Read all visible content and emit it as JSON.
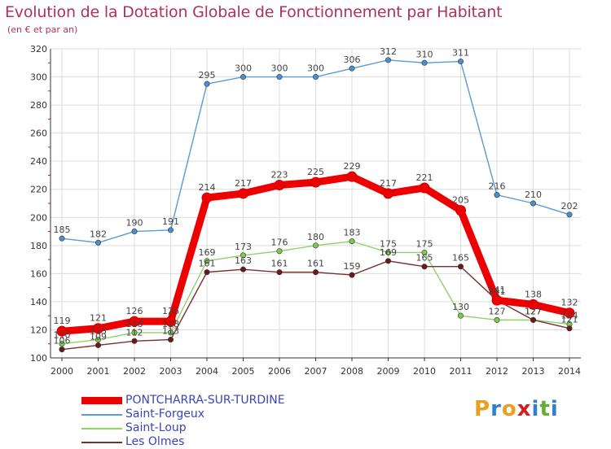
{
  "header": {
    "title": "Evolution de la Dotation Globale de Fonctionnement par Habitant",
    "subtitle": "(en € et par an)"
  },
  "logo": {
    "text": "Proxiti",
    "colors": [
      "#e8a020",
      "#3080d0",
      "#e8a020",
      "#d02020",
      "#3080d0",
      "#60b030",
      "#3080d0"
    ]
  },
  "colors": {
    "background": "#ffffff",
    "grid": "#dcdcdc",
    "axis": "#333333",
    "label": "#333333",
    "title": "#b03060"
  },
  "chart_data": {
    "type": "line",
    "title": "Evolution de la Dotation Globale de Fonctionnement par Habitant",
    "subtitle": "(en € et par an)",
    "xlabel": "",
    "ylabel": "",
    "ylim": [
      100,
      320
    ],
    "yticks": [
      100,
      120,
      140,
      160,
      180,
      200,
      220,
      240,
      260,
      280,
      300,
      320
    ],
    "categories": [
      "2000",
      "2001",
      "2002",
      "2003",
      "2004",
      "2005",
      "2006",
      "2007",
      "2008",
      "2009",
      "2010",
      "2011",
      "2012",
      "2013",
      "2014"
    ],
    "grid": true,
    "legend_position": "bottom-left",
    "series": [
      {
        "name": "Saint-Forgeux",
        "color": "#5a9bd4",
        "marker_color": "#4a90d0",
        "emphasis": false,
        "values": [
          185,
          182,
          190,
          191,
          295,
          300,
          300,
          300,
          306,
          312,
          310,
          311,
          216,
          210,
          202
        ]
      },
      {
        "name": "Saint-Loup",
        "color": "#8fd16a",
        "marker_color": "#7ccc4a",
        "emphasis": false,
        "values": [
          110,
          113,
          118,
          118,
          169,
          173,
          176,
          180,
          183,
          175,
          175,
          130,
          127,
          127,
          124
        ]
      },
      {
        "name": "Les Olmes",
        "color": "#7a2e2e",
        "marker_color": "#6a1a1a",
        "emphasis": false,
        "values": [
          106,
          109,
          112,
          113,
          161,
          163,
          161,
          161,
          159,
          169,
          165,
          165,
          141,
          127,
          121
        ]
      },
      {
        "name": "PONTCHARRA-SUR-TURDINE",
        "color": "#ee0000",
        "marker_color": "#ee0000",
        "emphasis": true,
        "values": [
          119,
          121,
          126,
          126,
          214,
          217,
          223,
          225,
          229,
          217,
          221,
          205,
          141,
          138,
          132
        ]
      }
    ],
    "data_labels": [
      {
        "series": "Saint-Forgeux",
        "labels": [
          "185",
          "182",
          "190",
          "191",
          "295",
          "300",
          "300",
          "300",
          "306",
          "312",
          "310",
          "311",
          "216",
          "210",
          "202"
        ]
      },
      {
        "series": "Saint-Loup",
        "labels": [
          "110",
          "113",
          "118",
          "118",
          "169",
          "173",
          "176",
          "180",
          "183",
          "175",
          "175",
          "130",
          "127",
          "127",
          "124"
        ]
      },
      {
        "series": "Les Olmes",
        "labels": [
          "106",
          "109",
          "112",
          "113",
          "161",
          "163",
          "161",
          "161",
          "159",
          "169",
          "165",
          "165",
          "141",
          "127",
          "121"
        ]
      },
      {
        "series": "PONTCHARRA-SUR-TURDINE",
        "labels": [
          "119",
          "121",
          "126",
          "126",
          "214",
          "217",
          "223",
          "225",
          "229",
          "217",
          "221",
          "205",
          "141",
          "138",
          "132"
        ]
      }
    ],
    "legend": [
      "PONTCHARRA-SUR-TURDINE",
      "Saint-Forgeux",
      "Saint-Loup",
      "Les Olmes"
    ]
  }
}
